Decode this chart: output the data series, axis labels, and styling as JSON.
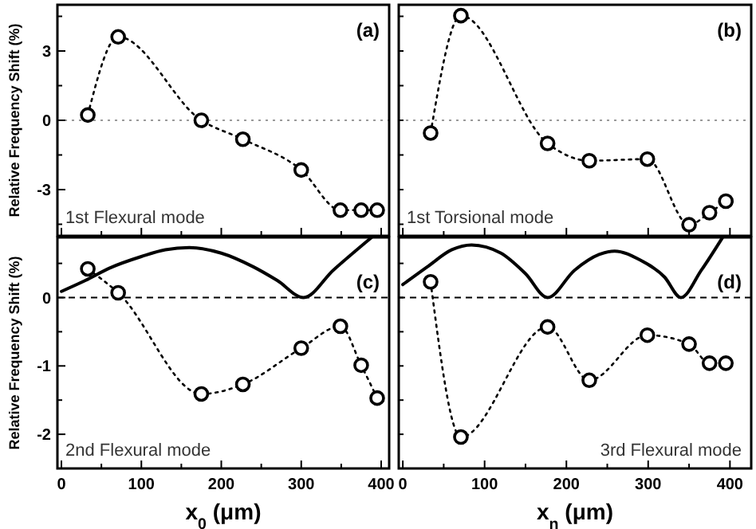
{
  "chart_data": [
    {
      "type": "line",
      "ylabel": "Relative Frequency Shift (%)",
      "annotations": [
        "(a)",
        "1st Flexural mode"
      ],
      "tick_labels": "y",
      "xlim": [
        -5,
        410
      ],
      "ylim": [
        -5,
        5
      ],
      "xticks": [
        0,
        {
          "value": 50,
          "label": null
        },
        100,
        {
          "value": 150,
          "label": null
        },
        200,
        {
          "value": 250,
          "label": null
        },
        300,
        {
          "value": 350,
          "label": null
        },
        400
      ],
      "yticks": [
        {
          "value": -4.5,
          "label": null
        },
        -3,
        {
          "value": -1.5,
          "label": null
        },
        0,
        {
          "value": 1.5,
          "label": null
        },
        3,
        {
          "value": 4.5,
          "label": null
        }
      ],
      "ref_lines": [
        {
          "axis": "y",
          "value": 0,
          "line_style": "dotted",
          "color": "#999999"
        }
      ],
      "series": [
        {
          "type": "line",
          "color": "#000000",
          "marker": "circle",
          "line_style": "dotted",
          "x": [
            33,
            71,
            175,
            227,
            300,
            349,
            375,
            395
          ],
          "values": [
            0.23,
            3.61,
            0,
            -0.82,
            -2.15,
            -3.89,
            -3.89,
            -3.89
          ]
        }
      ]
    },
    {
      "type": "line",
      "annotations": [
        "(b)",
        "1st Torsional mode"
      ],
      "tick_labels": false,
      "xlim": [
        -5,
        426
      ],
      "ylim": [
        -5,
        5
      ],
      "xticks": [
        0,
        {
          "value": 50,
          "label": null
        },
        100,
        {
          "value": 150,
          "label": null
        },
        200,
        {
          "value": 250,
          "label": null
        },
        300,
        {
          "value": 350,
          "label": null
        },
        400
      ],
      "yticks": [
        {
          "value": -4.5,
          "label": null
        },
        {
          "value": -3,
          "label": null
        },
        {
          "value": -1.5,
          "label": null
        },
        {
          "value": 0,
          "label": null
        },
        {
          "value": 1.5,
          "label": null
        },
        {
          "value": 3,
          "label": null
        },
        {
          "value": 4.5,
          "label": null
        }
      ],
      "ref_lines": [
        {
          "axis": "y",
          "value": 0,
          "line_style": "dotted",
          "color": "#999999"
        }
      ],
      "series": [
        {
          "type": "line",
          "color": "#000000",
          "marker": "circle",
          "line_style": "dotted",
          "x": [
            34,
            71,
            177,
            228,
            299,
            350,
            375,
            395
          ],
          "values": [
            -0.55,
            4.53,
            -1.0,
            -1.75,
            -1.68,
            -4.52,
            -4.0,
            -3.5
          ]
        }
      ]
    },
    {
      "type": "line",
      "ylabel": "Relative Frequency Shift (%)",
      "xlabel": "x$_{0}$ (μm)",
      "annotations": [
        "(c)",
        "2nd Flexural mode"
      ],
      "xlim": [
        -5,
        410
      ],
      "ylim": [
        -2.5,
        0.88
      ],
      "xticks": [
        0,
        {
          "value": 50,
          "label": null
        },
        100,
        {
          "value": 150,
          "label": null
        },
        200,
        {
          "value": 250,
          "label": null
        },
        300,
        {
          "value": 350,
          "label": null
        },
        400
      ],
      "yticks": [
        -2,
        {
          "value": -1.5,
          "label": null
        },
        -1,
        {
          "value": -0.5,
          "label": null
        },
        0,
        {
          "value": 0.5,
          "label": null
        }
      ],
      "ref_lines": [
        {
          "axis": "y",
          "value": 0,
          "line_style": "dashed",
          "color": "#000000"
        }
      ],
      "series": [
        {
          "type": "line",
          "color": "#000000",
          "marker": "none",
          "line_style": "solid",
          "x": [
            0,
            30,
            60,
            100,
            130,
            160,
            200,
            240,
            270,
            303,
            340,
            388
          ],
          "values": [
            0.09,
            0.25,
            0.43,
            0.6,
            0.7,
            0.73,
            0.65,
            0.45,
            0.25,
            0,
            0.4,
            0.88
          ]
        },
        {
          "type": "line",
          "color": "#000000",
          "marker": "circle",
          "line_style": "dotted",
          "x": [
            33,
            71,
            175,
            227,
            300,
            349,
            375,
            395
          ],
          "values": [
            0.42,
            0.07,
            -1.41,
            -1.27,
            -0.74,
            -0.42,
            -0.99,
            -1.47
          ]
        }
      ]
    },
    {
      "type": "line",
      "xlabel": "x$_{n}$ (μm)",
      "annotations": [
        "(d)",
        "3rd Flexural mode"
      ],
      "tick_labels": "x",
      "xlim": [
        -5,
        426
      ],
      "ylim": [
        -2.5,
        0.88
      ],
      "xticks": [
        0,
        {
          "value": 50,
          "label": null
        },
        100,
        {
          "value": 150,
          "label": null
        },
        200,
        {
          "value": 250,
          "label": null
        },
        300,
        {
          "value": 350,
          "label": null
        },
        400
      ],
      "yticks": [
        {
          "value": -2,
          "label": null
        },
        {
          "value": -1.5,
          "label": null
        },
        {
          "value": -1,
          "label": null
        },
        {
          "value": -0.5,
          "label": null
        },
        {
          "value": 0,
          "label": null
        },
        {
          "value": 0.5,
          "label": null
        }
      ],
      "ref_lines": [
        {
          "axis": "y",
          "value": 0,
          "line_style": "dashed",
          "color": "#000000"
        }
      ],
      "series": [
        {
          "type": "line",
          "color": "#000000",
          "marker": "none",
          "line_style": "solid",
          "x": [
            0,
            30,
            60,
            84,
            120,
            150,
            177,
            210,
            240,
            259,
            290,
            320,
            340,
            365,
            391
          ],
          "values": [
            0.19,
            0.45,
            0.7,
            0.77,
            0.65,
            0.35,
            0,
            0.4,
            0.63,
            0.68,
            0.55,
            0.3,
            0,
            0.4,
            0.88
          ]
        },
        {
          "type": "line",
          "color": "#000000",
          "marker": "circle",
          "line_style": "dotted",
          "x": [
            34,
            71,
            177,
            228,
            299,
            350,
            375,
            395
          ],
          "values": [
            0.23,
            -2.04,
            -0.43,
            -1.21,
            -0.55,
            -0.68,
            -0.96,
            -0.96
          ]
        }
      ]
    }
  ]
}
